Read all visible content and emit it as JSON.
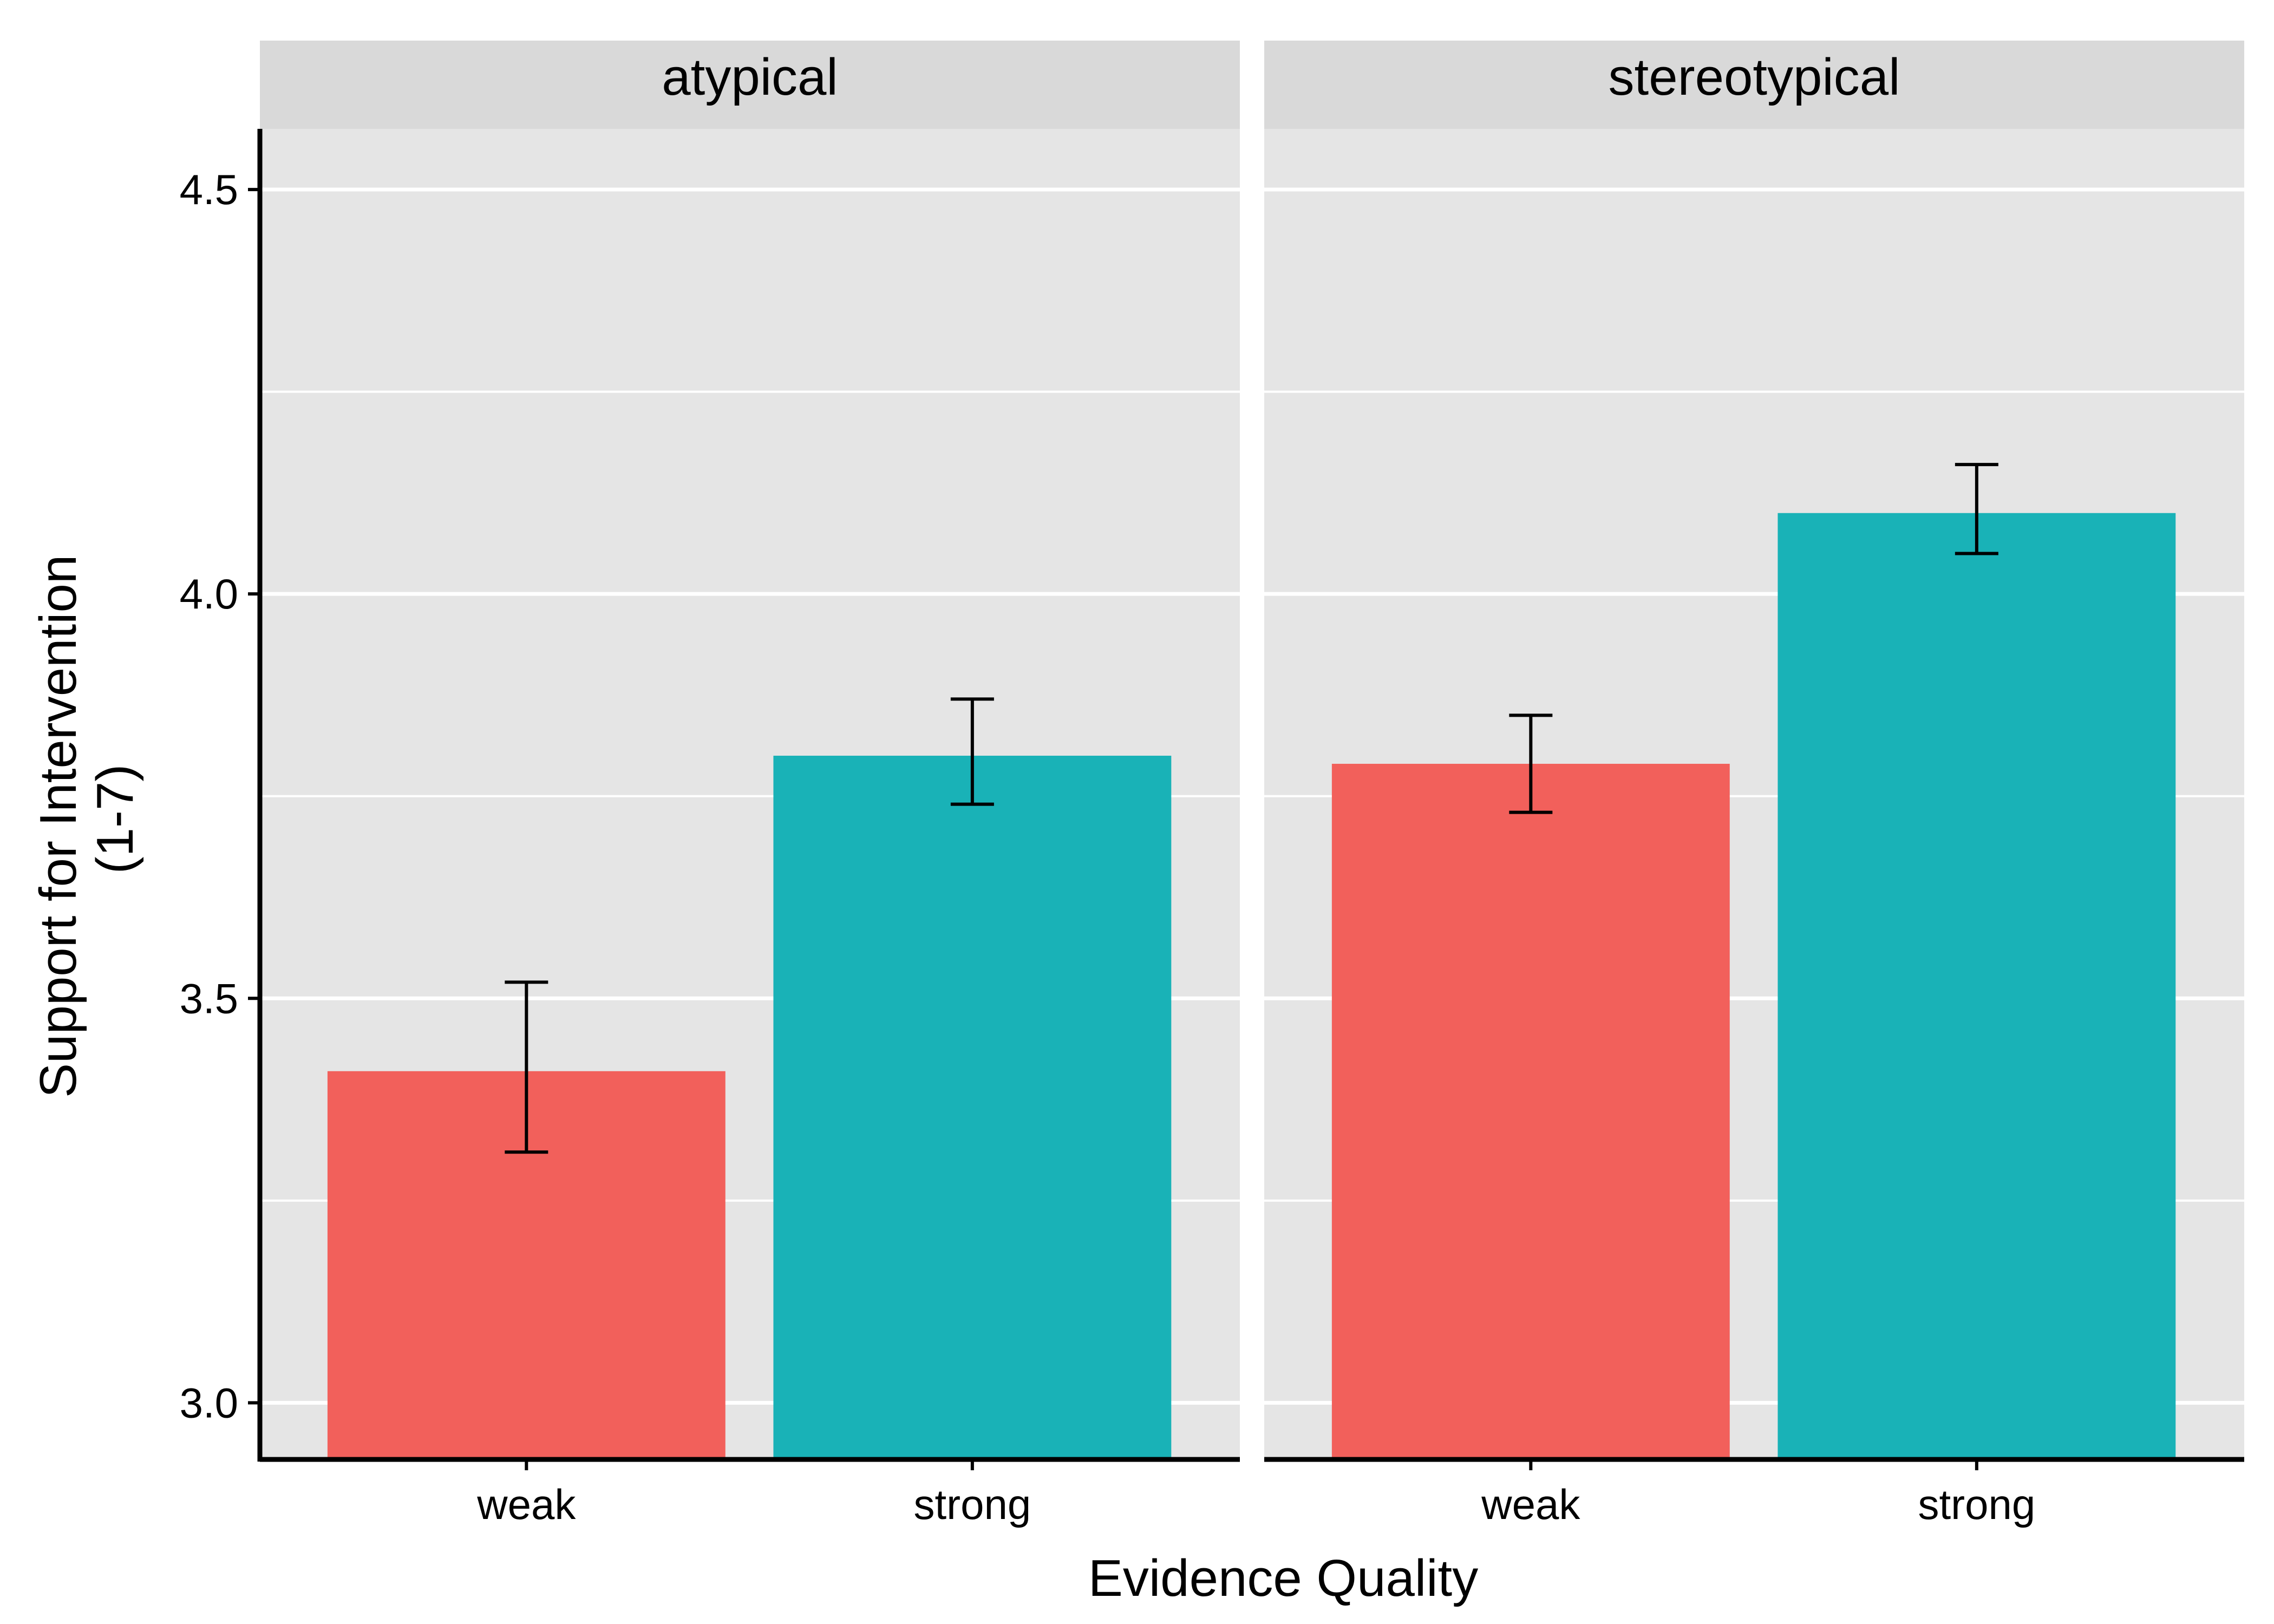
{
  "chart_data": {
    "type": "bar",
    "xlabel": "Evidence Quality",
    "ylabel_lines": [
      "Support for Intervention",
      "(1-7)"
    ],
    "ylim": [
      2.93,
      4.575
    ],
    "yticks": [
      3.0,
      3.5,
      4.0,
      4.5
    ],
    "ytick_labels": [
      "3.0",
      "3.5",
      "4.0",
      "4.5"
    ],
    "grid": true,
    "legend": "none",
    "categories": [
      "weak",
      "strong"
    ],
    "colors": {
      "weak": "#F2605B",
      "strong": "#19B2B7"
    },
    "panels": [
      {
        "strip_label": "atypical",
        "bars": [
          {
            "category": "weak",
            "value": 3.41,
            "err_low": 3.31,
            "err_high": 3.52
          },
          {
            "category": "strong",
            "value": 3.8,
            "err_low": 3.74,
            "err_high": 3.87
          }
        ]
      },
      {
        "strip_label": "stereotypical",
        "bars": [
          {
            "category": "weak",
            "value": 3.79,
            "err_low": 3.73,
            "err_high": 3.85
          },
          {
            "category": "strong",
            "value": 4.1,
            "err_low": 4.05,
            "err_high": 4.16
          }
        ]
      }
    ]
  }
}
